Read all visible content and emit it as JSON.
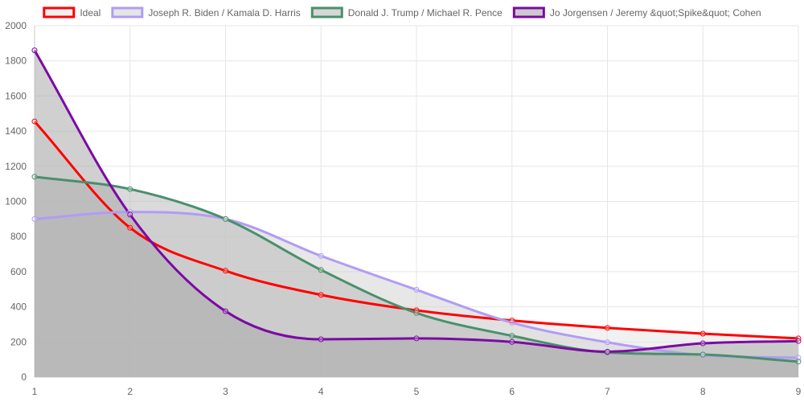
{
  "chart_data": {
    "type": "area",
    "x": [
      1,
      2,
      3,
      4,
      5,
      6,
      7,
      8,
      9
    ],
    "ylim": [
      0,
      2000
    ],
    "yticks": [
      0,
      200,
      400,
      600,
      800,
      1000,
      1200,
      1400,
      1600,
      1800,
      2000
    ],
    "xticks": [
      1,
      2,
      3,
      4,
      5,
      6,
      7,
      8,
      9
    ],
    "grid": true,
    "legend_position": "top",
    "series": [
      {
        "name": "Ideal",
        "color": "#ff0000",
        "fill": "#e6e6e6",
        "values": [
          1455,
          850,
          605,
          468,
          380,
          322,
          280,
          247,
          220
        ]
      },
      {
        "name": "Joseph R. Biden / Kamala D. Harris",
        "color": "#b19cf5",
        "fill": "#d3d3d3",
        "values": [
          900,
          940,
          900,
          690,
          497,
          310,
          198,
          125,
          110
        ]
      },
      {
        "name": "Donald J. Trump / Michael R. Pence",
        "color": "#4a8f6c",
        "fill": "#bcbcbc",
        "values": [
          1140,
          1070,
          900,
          610,
          365,
          235,
          140,
          128,
          88
        ]
      },
      {
        "name": "Jo Jorgensen / Jeremy &quot;Spike&quot; Cohen",
        "color": "#7b0aa3",
        "fill": "#a9a9a9",
        "values": [
          1860,
          925,
          375,
          215,
          220,
          200,
          145,
          192,
          205
        ]
      }
    ]
  }
}
